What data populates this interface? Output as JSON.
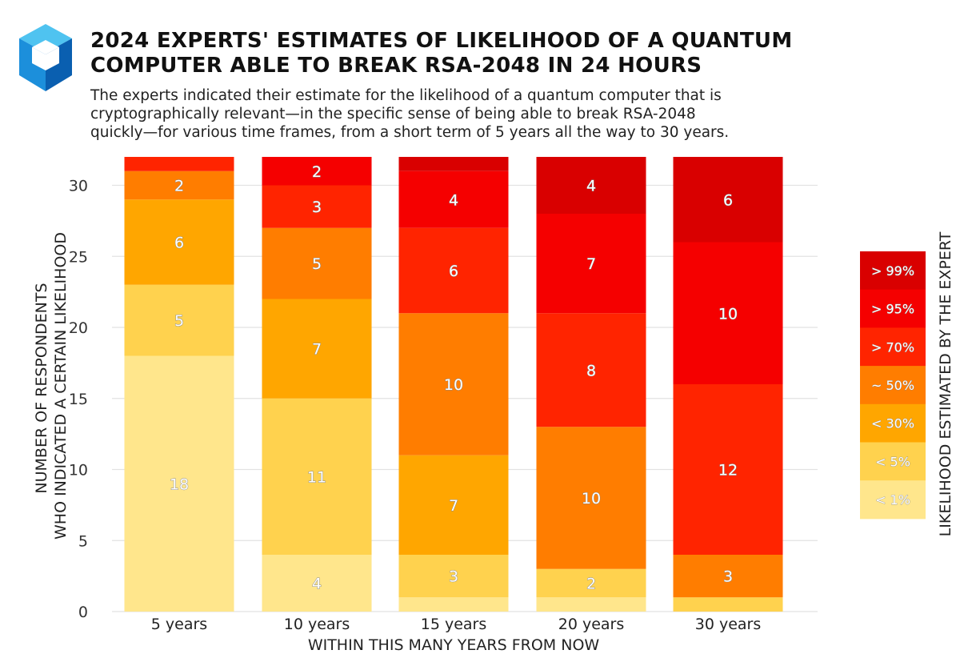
{
  "title_lines": [
    "2024 EXPERTS' ESTIMATES OF LIKELIHOOD OF A QUANTUM",
    "COMPUTER ABLE TO BREAK RSA-2048 IN 24 HOURS"
  ],
  "subtitle_lines": [
    "The experts indicated their estimate for the likelihood of a quantum computer that is",
    "cryptographically relevant—in the specific sense of being able to break RSA-2048",
    "quickly—for various time frames, from a short term of 5 years all the way to 30 years."
  ],
  "logo": {
    "icon": "cube-logo-icon"
  },
  "colors": {
    "lt1": "#ffe68c",
    "lt5": "#ffd24e",
    "lt30": "#ffa600",
    "p50": "#ff7d00",
    "gt70": "#ff2400",
    "gt95": "#f50000",
    "gt99": "#d90000",
    "grid": "#e2e2e2"
  },
  "chart_data": {
    "type": "bar",
    "stacked": true,
    "title": "2024 EXPERTS' ESTIMATES OF LIKELIHOOD OF A QUANTUM COMPUTER ABLE TO BREAK RSA-2048 IN 24 HOURS",
    "xlabel": "WITHIN THIS MANY YEARS FROM NOW",
    "ylabel_lines": [
      "NUMBER OF RESPONDENTS",
      "WHO INDICATED A CERTAIN LIKELIHOOD"
    ],
    "ylim": [
      0,
      32
    ],
    "yticks": [
      0,
      5,
      10,
      15,
      20,
      25,
      30
    ],
    "grid": true,
    "categories": [
      "5 years",
      "10 years",
      "15 years",
      "20 years",
      "30 years"
    ],
    "legend_title": "LIKELIHOOD ESTIMATED BY THE EXPERT",
    "legend_position": "right",
    "series": [
      {
        "key": "lt1",
        "name": "< 1%",
        "values": [
          18,
          4,
          1,
          1,
          0
        ]
      },
      {
        "key": "lt5",
        "name": "< 5%",
        "values": [
          5,
          11,
          3,
          2,
          1
        ]
      },
      {
        "key": "lt30",
        "name": "< 30%",
        "values": [
          6,
          7,
          7,
          0,
          0
        ]
      },
      {
        "key": "p50",
        "name": "~ 50%",
        "values": [
          2,
          5,
          10,
          10,
          3
        ]
      },
      {
        "key": "gt70",
        "name": "> 70%",
        "values": [
          1,
          3,
          6,
          8,
          12
        ]
      },
      {
        "key": "gt95",
        "name": "> 95%",
        "values": [
          0,
          2,
          4,
          7,
          10
        ]
      },
      {
        "key": "gt99",
        "name": "> 99%",
        "values": [
          0,
          0,
          1,
          4,
          6
        ]
      }
    ]
  }
}
